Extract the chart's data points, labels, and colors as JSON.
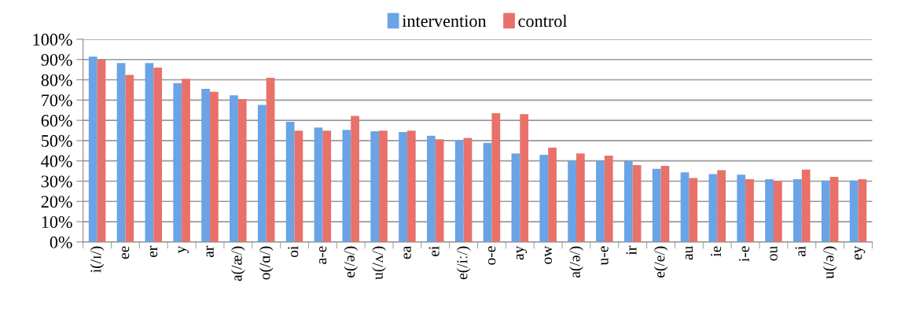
{
  "chart_data": {
    "type": "bar",
    "categories": [
      "i(/ɪ/)",
      "ee",
      "er",
      "y",
      "ar",
      "a(/æ/)",
      "o(/ɑ/)",
      "oi",
      "a-e",
      "e(/ə/)",
      "u(/ʌ/)",
      "ea",
      "ei",
      "e(/iː/)",
      "o-e",
      "ay",
      "ow",
      "a(/ə/)",
      "u-e",
      "ir",
      "e(/e/)",
      "au",
      "ie",
      "i-e",
      "ou",
      "ai",
      "u(/ə/)",
      "ey"
    ],
    "series": [
      {
        "name": "intervention",
        "color": "#6aa3e6",
        "values": [
          91.4,
          88.2,
          88.2,
          78.4,
          75.5,
          72.3,
          67.6,
          59.3,
          56.4,
          55.3,
          54.6,
          54.2,
          52.4,
          50.2,
          48.9,
          43.7,
          43,
          40.1,
          40,
          39.9,
          36.1,
          34.3,
          33.5,
          33.2,
          31,
          31,
          30.3,
          30.3
        ]
      },
      {
        "name": "control",
        "color": "#e8716a",
        "values": [
          90,
          82.4,
          86,
          80.5,
          74.1,
          70.5,
          81,
          54.9,
          54.9,
          62.2,
          54.9,
          54.9,
          50.6,
          51.3,
          63.5,
          63,
          46.6,
          43.7,
          42.6,
          37.9,
          37.5,
          31.5,
          35.4,
          31,
          30.2,
          35.7,
          32.1,
          31
        ]
      }
    ],
    "ylim": [
      0,
      100
    ],
    "yticks": [
      {
        "value": 0,
        "label": "0%"
      },
      {
        "value": 10,
        "label": "10%"
      },
      {
        "value": 20,
        "label": "20%"
      },
      {
        "value": 30,
        "label": "30%"
      },
      {
        "value": 40,
        "label": "40%"
      },
      {
        "value": 50,
        "label": "50%"
      },
      {
        "value": 60,
        "label": "60%"
      },
      {
        "value": 70,
        "label": "70%"
      },
      {
        "value": 80,
        "label": "80%"
      },
      {
        "value": 90,
        "label": "90%"
      },
      {
        "value": 100,
        "label": "100%"
      }
    ],
    "grid": "y",
    "legend": "top"
  }
}
